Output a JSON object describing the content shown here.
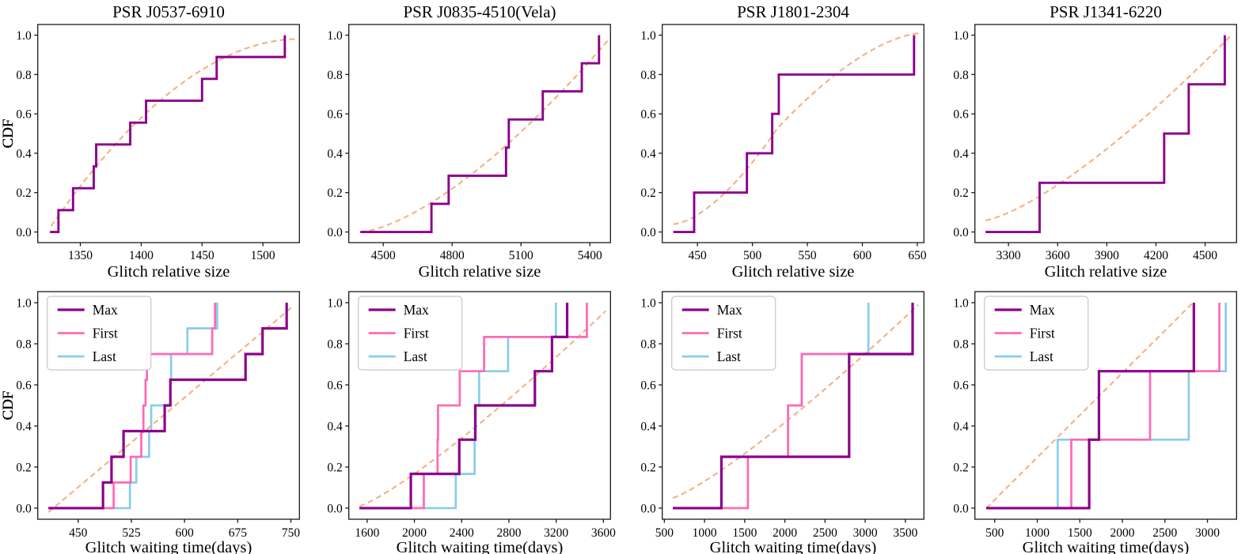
{
  "figure": {
    "ylabel": "CDF",
    "yticks": [
      "0.0",
      "0.2",
      "0.4",
      "0.6",
      "0.8",
      "1.0"
    ],
    "colors": {
      "max": "#8B008B",
      "first": "#FF69B4",
      "last": "#87CEEB",
      "cdf": "#8B008B",
      "fit": "#F4B183",
      "spine": "#1a1a1a",
      "text": "#000000"
    },
    "legend": {
      "items": [
        {
          "key": "max",
          "label": "Max"
        },
        {
          "key": "first",
          "label": "First"
        },
        {
          "key": "last",
          "label": "Last"
        }
      ]
    }
  },
  "chart_data": {
    "type": "line",
    "note": "Each panel: empirical CDF step series (events = x-values where CDF rises by 1/n) plus fitted dashed curve from->to.",
    "panels": [
      {
        "id": "j0537-size",
        "row": 0,
        "col": 0,
        "title": "PSR J0537-6910",
        "xlabel": "Glitch relative size",
        "xlim": [
          1315,
          1530
        ],
        "xticks": [
          "1350",
          "1400",
          "1450",
          "1500"
        ],
        "fit": {
          "shape": "concave",
          "p": 1.9,
          "from": [
            1326,
            0.03
          ],
          "to": [
            1528,
            0.98
          ]
        },
        "series": [
          {
            "key": "cdf",
            "name": "CDF",
            "x0": 1325,
            "events": [
              1332,
              1344,
              1361,
              1363,
              1391,
              1404,
              1450,
              1462,
              1518
            ]
          }
        ]
      },
      {
        "id": "vela-size",
        "row": 0,
        "col": 1,
        "title": "PSR J0835-4510(Vela)",
        "xlabel": "Glitch relative size",
        "xlim": [
          4350,
          5490
        ],
        "xticks": [
          "4500",
          "4800",
          "5100",
          "5400"
        ],
        "fit": {
          "shape": "convex",
          "p": 1.5,
          "from": [
            4400,
            0.0
          ],
          "to": [
            5480,
            0.975
          ]
        },
        "series": [
          {
            "key": "cdf",
            "name": "CDF",
            "x0": 4400,
            "events": [
              4710,
              4785,
              5035,
              5047,
              5195,
              5365,
              5440
            ]
          }
        ]
      },
      {
        "id": "j1801-size",
        "row": 0,
        "col": 2,
        "title": "PSR J1801-2304",
        "xlabel": "Glitch relative size",
        "xlim": [
          418,
          656
        ],
        "xticks": [
          "450",
          "500",
          "550",
          "600",
          "650"
        ],
        "fit": {
          "shape": "sigmoid",
          "c": 0.42,
          "p": 1.6,
          "from": [
            428,
            0.04
          ],
          "to": [
            653,
            1.01
          ]
        },
        "series": [
          {
            "key": "cdf",
            "name": "CDF",
            "x0": 428,
            "events": [
              447,
              495,
              518,
              524,
              647
            ]
          }
        ]
      },
      {
        "id": "j1341-size",
        "row": 0,
        "col": 3,
        "title": "PSR J1341-6220",
        "xlabel": "Glitch relative size",
        "xlim": [
          3095,
          4692
        ],
        "xticks": [
          "3300",
          "3600",
          "3900",
          "4200",
          "4500"
        ],
        "fit": {
          "shape": "convex",
          "p": 1.35,
          "from": [
            3160,
            0.06
          ],
          "to": [
            4660,
            1.0
          ]
        },
        "series": [
          {
            "key": "cdf",
            "name": "CDF",
            "x0": 3160,
            "events": [
              3490,
              4250,
              4400,
              4620
            ]
          }
        ]
      },
      {
        "id": "j0537-wait",
        "row": 1,
        "col": 0,
        "title": "",
        "xlabel": "Glitch waiting time(days)",
        "xlim": [
          393,
          762
        ],
        "xticks": [
          "450",
          "525",
          "600",
          "675",
          "750"
        ],
        "legend": true,
        "fit": {
          "shape": "linear",
          "from": [
            408,
            -0.02
          ],
          "to": [
            752,
            0.98
          ]
        },
        "series": [
          {
            "key": "last",
            "name": "Last",
            "x0": 408,
            "events": [
              523,
              532,
              550,
              553,
              580,
              581,
              604,
              646
            ]
          },
          {
            "key": "first",
            "name": "First",
            "x0": 408,
            "events": [
              500,
              524,
              539,
              542,
              545,
              547,
              639,
              643
            ]
          },
          {
            "key": "max",
            "name": "Max",
            "x0": 408,
            "events": [
              485,
              497,
              514,
              572,
              580,
              686,
              710,
              744
            ]
          }
        ]
      },
      {
        "id": "vela-wait",
        "row": 1,
        "col": 1,
        "title": "",
        "xlabel": "Glitch waiting time(days)",
        "xlim": [
          1445,
          3660
        ],
        "xticks": [
          "1600",
          "2000",
          "2400",
          "2800",
          "3200",
          "3600"
        ],
        "legend": true,
        "fit": {
          "shape": "convex",
          "p": 1.2,
          "from": [
            1535,
            0.01
          ],
          "to": [
            3620,
            0.96
          ]
        },
        "series": [
          {
            "key": "last",
            "name": "Last",
            "x0": 1535,
            "events": [
              2350,
              2510,
              2512,
              2548,
              2793,
              3198
            ]
          },
          {
            "key": "first",
            "name": "First",
            "x0": 1535,
            "events": [
              2080,
              2196,
              2200,
              2384,
              2590,
              3460
            ]
          },
          {
            "key": "max",
            "name": "Max",
            "x0": 1535,
            "events": [
              1970,
              2380,
              2516,
              3020,
              3165,
              3293
            ]
          }
        ]
      },
      {
        "id": "j1801-wait",
        "row": 1,
        "col": 2,
        "title": "",
        "xlabel": "Glitch waiting time(days)",
        "xlim": [
          474,
          3731
        ],
        "xticks": [
          "500",
          "1000",
          "1500",
          "2000",
          "2500",
          "3000",
          "3500"
        ],
        "legend": true,
        "fit": {
          "shape": "convex",
          "p": 1.2,
          "from": [
            605,
            0.05
          ],
          "to": [
            3660,
            0.99
          ]
        },
        "series": [
          {
            "key": "last",
            "name": "Last",
            "x0": 605,
            "events": [
              1210,
              2040,
              2210,
              3040
            ]
          },
          {
            "key": "first",
            "name": "First",
            "x0": 605,
            "events": [
              1540,
              2040,
              2210,
              3590
            ]
          },
          {
            "key": "max",
            "name": "Max",
            "x0": 605,
            "events": [
              1210,
              2800,
              2800,
              3590
            ]
          }
        ]
      },
      {
        "id": "j1341-wait",
        "row": 1,
        "col": 3,
        "title": "",
        "xlabel": "Glitch waiting time(days)",
        "xlim": [
          267,
          3342
        ],
        "xticks": [
          "500",
          "1000",
          "1500",
          "2000",
          "2500",
          "3000"
        ],
        "legend": true,
        "fit": {
          "shape": "linear",
          "from": [
            400,
            0.0
          ],
          "to": [
            2830,
            1.0
          ]
        },
        "series": [
          {
            "key": "last",
            "name": "Last",
            "x0": 400,
            "events": [
              1240,
              2780,
              3215
            ]
          },
          {
            "key": "first",
            "name": "First",
            "x0": 400,
            "events": [
              1400,
              2325,
              3140
            ]
          },
          {
            "key": "max",
            "name": "Max",
            "x0": 400,
            "events": [
              1610,
              1725,
              2840
            ]
          }
        ]
      }
    ]
  }
}
